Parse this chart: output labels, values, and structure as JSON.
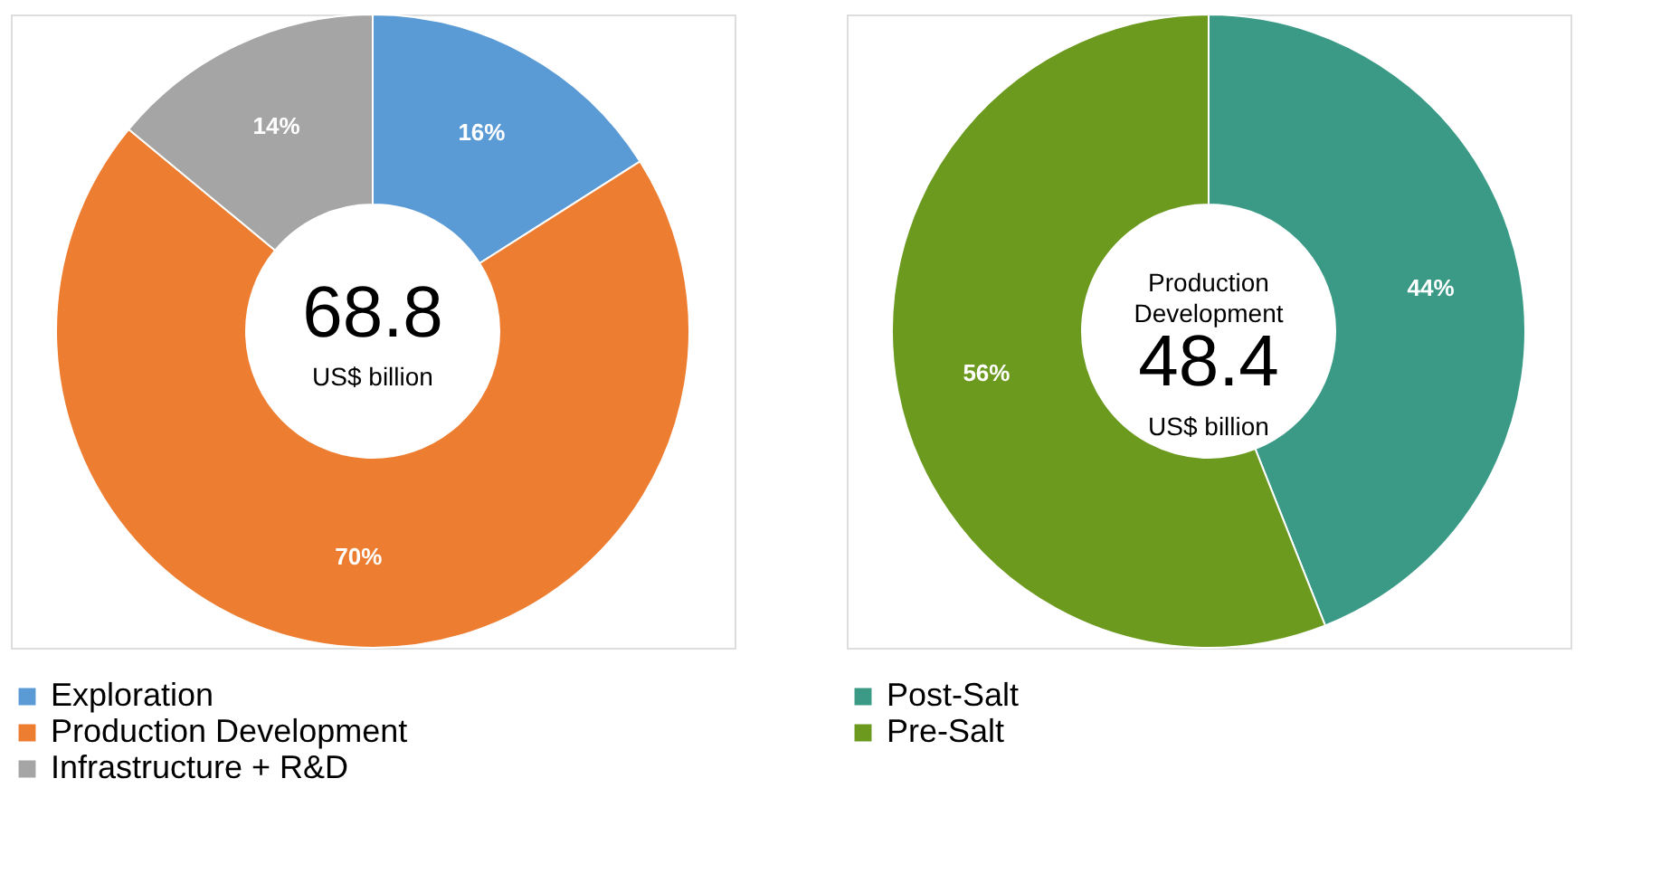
{
  "chart_data": [
    {
      "type": "donut",
      "categories": [
        "Exploration",
        "Production Development",
        "Infrastructure + R&D"
      ],
      "values": [
        16,
        70,
        14
      ],
      "colors": [
        "#5b9bd5",
        "#ed7d31",
        "#a5a5a5"
      ],
      "value_labels": [
        "16%",
        "70%",
        "14%"
      ],
      "annotations": [
        "68.8",
        "US$ billion"
      ],
      "legend": "bottom"
    },
    {
      "type": "donut",
      "categories": [
        "Post-Salt",
        "Pre-Salt"
      ],
      "values": [
        44,
        56
      ],
      "colors": [
        "#3a9a86",
        "#6b9a1f"
      ],
      "value_labels": [
        "44%",
        "56%"
      ],
      "annotations": [
        "Production Development",
        "48.4",
        "US$ billion"
      ],
      "legend": "bottom"
    }
  ]
}
